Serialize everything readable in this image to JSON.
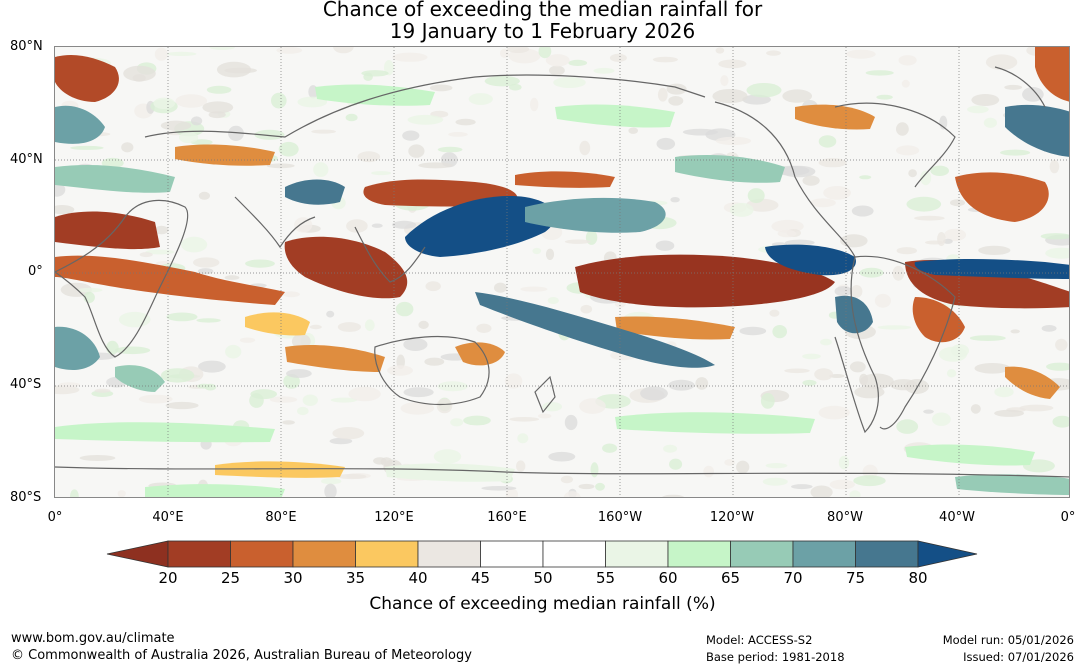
{
  "title": {
    "line1": "Chance of exceeding the median rainfall for",
    "line2": "19 January to 1 February 2026"
  },
  "map": {
    "lat_labels": [
      "80°N",
      "40°N",
      "0°",
      "40°S",
      "80°S"
    ],
    "lon_labels": [
      "0°",
      "40°E",
      "80°E",
      "120°E",
      "160°E",
      "160°W",
      "120°W",
      "80°W",
      "40°W",
      "0°"
    ]
  },
  "colorbar": {
    "ticks": [
      "20",
      "25",
      "30",
      "35",
      "40",
      "45",
      "50",
      "55",
      "60",
      "65",
      "70",
      "75",
      "80"
    ],
    "low_extend_color": "#8e3020",
    "high_extend_color": "#144f86",
    "colors": [
      "#a23d24",
      "#c9602e",
      "#df8d3f",
      "#fbc860",
      "#ebe7e2",
      "#ffffff",
      "#ffffff",
      "#eaf5e6",
      "#c6f5c8",
      "#97cbb6",
      "#6ca1a6",
      "#46778f"
    ],
    "label": "Chance of exceeding median rainfall (%)"
  },
  "footer": {
    "website": "www.bom.gov.au/climate",
    "copyright": "© Commonwealth of Australia 2026, Australian Bureau of Meteorology",
    "model": "Model: ACCESS-S2",
    "base_period": "Base period: 1981-2018",
    "model_run": "Model run: 05/01/2026",
    "issued": "Issued: 07/01/2026"
  }
}
